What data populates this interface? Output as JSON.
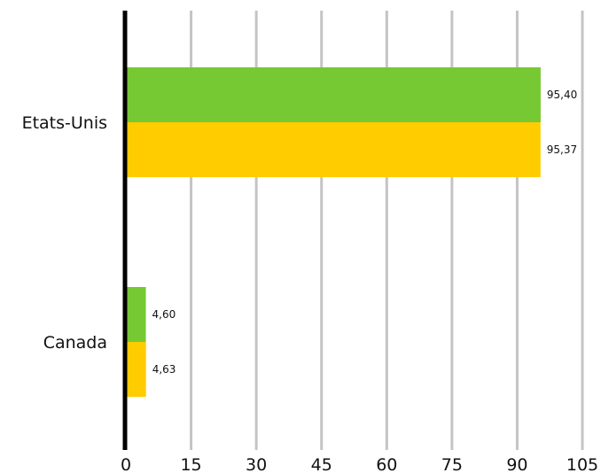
{
  "chart_data": {
    "type": "bar",
    "orientation": "horizontal",
    "categories": [
      "Etats-Unis",
      "Canada"
    ],
    "series": [
      {
        "color": "#76c933",
        "values": [
          95.4,
          4.6
        ],
        "labels": [
          "95,40",
          "4,60"
        ]
      },
      {
        "color": "#ffcc00",
        "values": [
          95.37,
          4.63
        ],
        "labels": [
          "95,37",
          "4,63"
        ]
      }
    ],
    "xlim": [
      0,
      105
    ],
    "xticks": [
      0,
      15,
      30,
      45,
      60,
      75,
      90,
      105
    ],
    "xtick_labels": [
      "0",
      "15",
      "30",
      "45",
      "60",
      "75",
      "90",
      "105"
    ],
    "grid": "vertical",
    "legend": "none"
  }
}
